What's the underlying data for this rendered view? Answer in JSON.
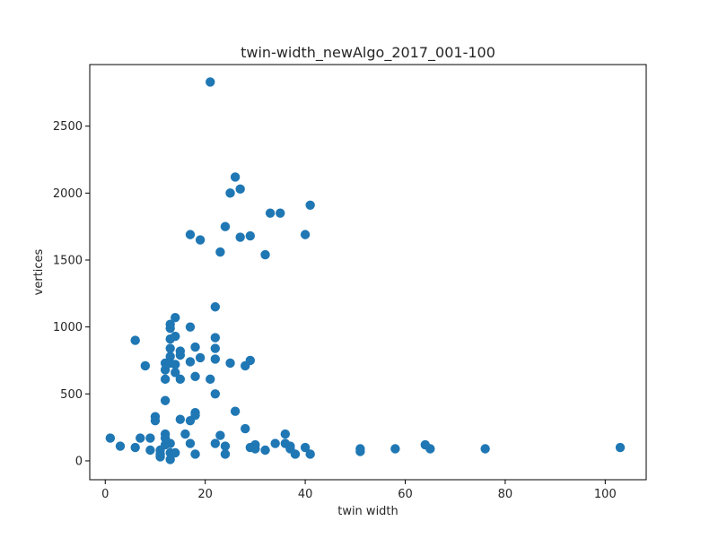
{
  "chart_data": {
    "type": "scatter",
    "title": "twin-width_newAlgo_2017_001-100",
    "xlabel": "twin width",
    "ylabel": "vertices",
    "xlim": [
      -3.1,
      108.2
    ],
    "ylim": [
      -141,
      2960
    ],
    "xticks": [
      0,
      20,
      40,
      60,
      80,
      100
    ],
    "yticks": [
      0,
      500,
      1000,
      1500,
      2000,
      2500
    ],
    "grid": false,
    "marker_color": "#1f77b4",
    "points": [
      [
        1,
        170
      ],
      [
        3,
        110
      ],
      [
        6,
        100
      ],
      [
        6,
        900
      ],
      [
        7,
        170
      ],
      [
        8,
        710
      ],
      [
        9,
        170
      ],
      [
        9,
        80
      ],
      [
        10,
        330
      ],
      [
        10,
        300
      ],
      [
        11,
        80
      ],
      [
        11,
        50
      ],
      [
        11,
        30
      ],
      [
        12,
        450
      ],
      [
        12,
        610
      ],
      [
        12,
        680
      ],
      [
        12,
        730
      ],
      [
        12,
        200
      ],
      [
        12,
        170
      ],
      [
        12,
        120
      ],
      [
        13,
        1020
      ],
      [
        13,
        990
      ],
      [
        13,
        910
      ],
      [
        13,
        840
      ],
      [
        13,
        780
      ],
      [
        13,
        730
      ],
      [
        13,
        130
      ],
      [
        13,
        60
      ],
      [
        13,
        10
      ],
      [
        14,
        1070
      ],
      [
        14,
        930
      ],
      [
        14,
        720
      ],
      [
        14,
        660
      ],
      [
        14,
        60
      ],
      [
        15,
        820
      ],
      [
        15,
        790
      ],
      [
        15,
        610
      ],
      [
        15,
        310
      ],
      [
        16,
        200
      ],
      [
        17,
        1690
      ],
      [
        17,
        1000
      ],
      [
        17,
        740
      ],
      [
        17,
        300
      ],
      [
        17,
        130
      ],
      [
        18,
        850
      ],
      [
        18,
        630
      ],
      [
        18,
        360
      ],
      [
        18,
        340
      ],
      [
        18,
        50
      ],
      [
        19,
        1650
      ],
      [
        19,
        770
      ],
      [
        21,
        2830
      ],
      [
        21,
        610
      ],
      [
        22,
        1150
      ],
      [
        22,
        920
      ],
      [
        22,
        840
      ],
      [
        22,
        760
      ],
      [
        22,
        500
      ],
      [
        22,
        130
      ],
      [
        23,
        1560
      ],
      [
        23,
        190
      ],
      [
        24,
        1750
      ],
      [
        24,
        110
      ],
      [
        24,
        50
      ],
      [
        25,
        2000
      ],
      [
        25,
        730
      ],
      [
        26,
        2120
      ],
      [
        26,
        370
      ],
      [
        27,
        2030
      ],
      [
        27,
        1670
      ],
      [
        28,
        710
      ],
      [
        28,
        240
      ],
      [
        29,
        1680
      ],
      [
        29,
        750
      ],
      [
        29,
        100
      ],
      [
        30,
        120
      ],
      [
        30,
        90
      ],
      [
        32,
        1540
      ],
      [
        32,
        80
      ],
      [
        33,
        1850
      ],
      [
        34,
        130
      ],
      [
        35,
        1850
      ],
      [
        36,
        200
      ],
      [
        36,
        130
      ],
      [
        37,
        110
      ],
      [
        37,
        90
      ],
      [
        38,
        50
      ],
      [
        40,
        1690
      ],
      [
        40,
        100
      ],
      [
        41,
        1910
      ],
      [
        41,
        50
      ],
      [
        51,
        90
      ],
      [
        51,
        70
      ],
      [
        58,
        90
      ],
      [
        64,
        120
      ],
      [
        65,
        90
      ],
      [
        76,
        90
      ],
      [
        103,
        100
      ]
    ]
  }
}
